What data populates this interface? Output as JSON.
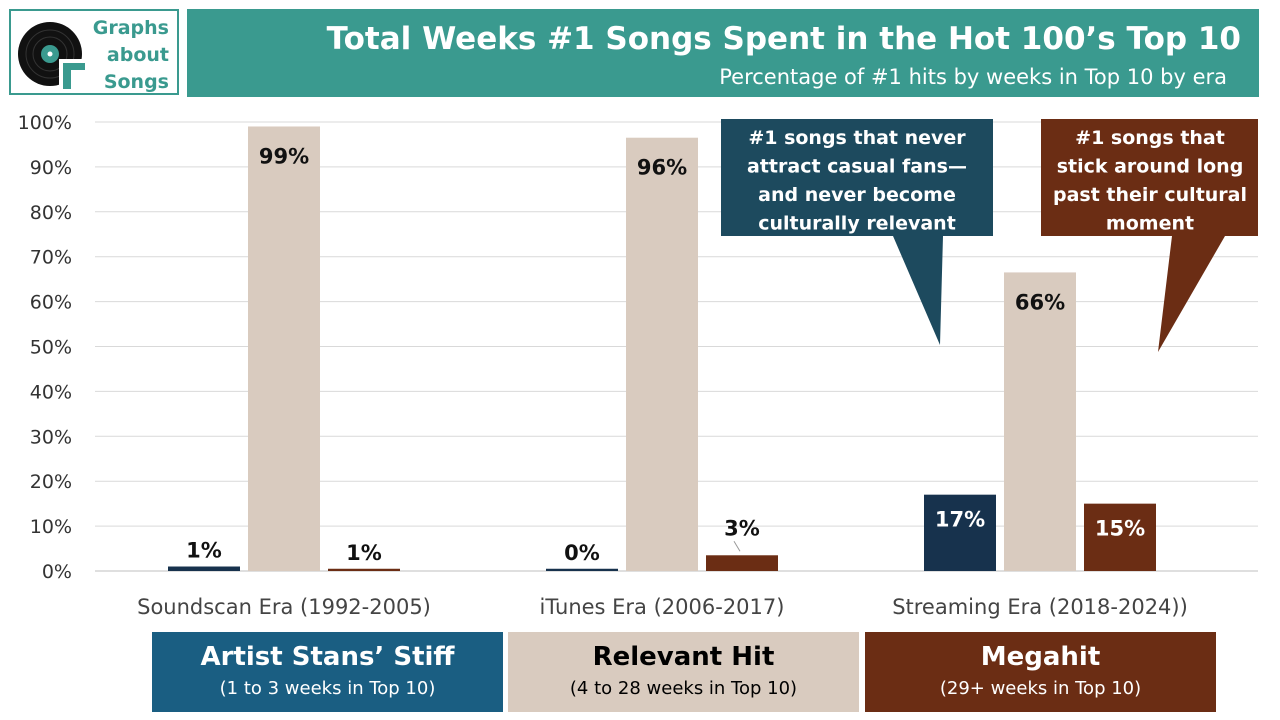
{
  "logo": {
    "lines": [
      "Graphs",
      "about",
      "Songs"
    ],
    "icon": "vinyl-record-icon",
    "accent": "#3a9a8f"
  },
  "header": {
    "title": "Total Weeks #1 Songs Spent in the Hot 100’s Top 10",
    "subtitle": "Percentage of #1 hits by weeks in Top 10 by era",
    "background": "#3a9a8f"
  },
  "chart_data": {
    "type": "bar",
    "categories": [
      "Soundscan Era (1992-2005)",
      "iTunes Era (2006-2017)",
      "Streaming Era (2018-2024))"
    ],
    "series": [
      {
        "name": "Artist Stans’ Stiff",
        "values": [
          1,
          0.5,
          17
        ],
        "labels": [
          "1%",
          "0%",
          "17%"
        ],
        "color": "#17324d"
      },
      {
        "name": "Relevant Hit",
        "values": [
          99,
          96.5,
          66.5
        ],
        "labels": [
          "99%",
          "96%",
          "66%"
        ],
        "color": "#d9cbbf"
      },
      {
        "name": "Megahit",
        "values": [
          0.5,
          3.5,
          15
        ],
        "labels": [
          "1%",
          "3%",
          "15%"
        ],
        "color": "#6b2d14"
      }
    ],
    "yticks": [
      "0%",
      "10%",
      "20%",
      "30%",
      "40%",
      "50%",
      "60%",
      "70%",
      "80%",
      "90%",
      "100%"
    ],
    "ylim": [
      0,
      100
    ],
    "grid": true,
    "legend_position": "bottom"
  },
  "callouts": [
    {
      "lines": [
        "#1 songs that never",
        "attract casual fans—",
        "and never become",
        "culturally relevant"
      ],
      "color": "#1d4a5e"
    },
    {
      "lines": [
        "#1 songs that",
        "stick around long",
        "past their cultural",
        "moment"
      ],
      "color": "#6b2d14"
    }
  ],
  "legend": [
    {
      "title": "Artist Stans’ Stiff",
      "sub": "(1 to 3 weeks in Top 10)",
      "bg": "#1a5e82",
      "fg": "#ffffff"
    },
    {
      "title": "Relevant Hit",
      "sub": "(4 to 28 weeks in Top 10)",
      "bg": "#d9cbbf",
      "fg": "#000000"
    },
    {
      "title": "Megahit",
      "sub": "(29+ weeks in Top 10)",
      "bg": "#6b2d14",
      "fg": "#ffffff"
    }
  ]
}
